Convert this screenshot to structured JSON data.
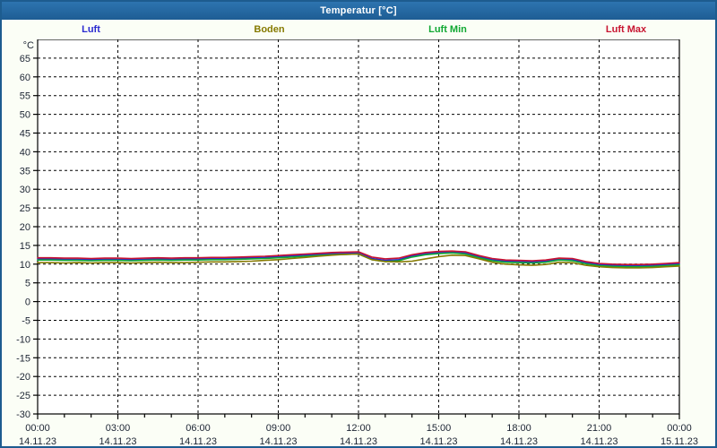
{
  "window": {
    "title": "Temperatur [°C]"
  },
  "legend": {
    "items": [
      {
        "label": "Luft",
        "color": "#2A2AD0"
      },
      {
        "label": "Boden",
        "color": "#867A00"
      },
      {
        "label": "Luft Min",
        "color": "#10A832"
      },
      {
        "label": "Luft Max",
        "color": "#C81430"
      }
    ]
  },
  "colors": {
    "titlebar": "#2569A3",
    "window_border": "#1D5C8F",
    "background": "#FBFEF6",
    "plot_background": "#FFFFFF",
    "grid": "#000000",
    "axis": "#000000",
    "tick_text": "#1C2433"
  },
  "chart_data": {
    "type": "line",
    "title": "Temperatur [°C]",
    "ylabel": "°C",
    "ylim": [
      -30,
      70
    ],
    "ytick_start": -30,
    "ytick_end": 65,
    "ytick_step": 5,
    "grid": "dashed",
    "legend_position": "top",
    "x_unit": "hours",
    "x_range_hours": [
      0,
      24
    ],
    "x_sample_step_hours": 0.5,
    "x_minor_tick_hours": 1,
    "x_major_ticks": [
      {
        "hour": 0,
        "time": "00:00",
        "date": "14.11.23"
      },
      {
        "hour": 3,
        "time": "03:00",
        "date": "14.11.23"
      },
      {
        "hour": 6,
        "time": "06:00",
        "date": "14.11.23"
      },
      {
        "hour": 9,
        "time": "09:00",
        "date": "14.11.23"
      },
      {
        "hour": 12,
        "time": "12:00",
        "date": "14.11.23"
      },
      {
        "hour": 15,
        "time": "15:00",
        "date": "14.11.23"
      },
      {
        "hour": 18,
        "time": "18:00",
        "date": "14.11.23"
      },
      {
        "hour": 21,
        "time": "21:00",
        "date": "14.11.23"
      },
      {
        "hour": 24,
        "time": "00:00",
        "date": "15.11.23"
      }
    ],
    "series": [
      {
        "name": "Luft",
        "color": "#2A2AD0",
        "values": [
          11.4,
          11.4,
          11.3,
          11.3,
          11.2,
          11.3,
          11.3,
          11.2,
          11.3,
          11.4,
          11.3,
          11.4,
          11.4,
          11.5,
          11.5,
          11.6,
          11.7,
          11.8,
          12.0,
          12.2,
          12.4,
          12.6,
          12.8,
          12.9,
          13.0,
          11.5,
          11.0,
          11.2,
          12.2,
          12.8,
          13.1,
          13.3,
          13.0,
          12.0,
          11.2,
          10.8,
          10.7,
          10.6,
          10.8,
          11.4,
          11.2,
          10.4,
          9.9,
          9.7,
          9.6,
          9.6,
          9.7,
          9.9,
          10.1
        ]
      },
      {
        "name": "Luft Min",
        "color": "#10A832",
        "values": [
          11.1,
          11.1,
          11.0,
          11.0,
          10.9,
          11.0,
          11.0,
          10.9,
          11.0,
          11.1,
          11.0,
          11.1,
          11.1,
          11.2,
          11.2,
          11.3,
          11.4,
          11.5,
          11.7,
          11.9,
          12.1,
          12.3,
          12.5,
          12.6,
          12.7,
          11.2,
          10.7,
          10.9,
          11.9,
          12.5,
          12.8,
          13.0,
          12.7,
          11.7,
          10.9,
          10.5,
          10.4,
          10.3,
          10.5,
          11.1,
          10.9,
          10.1,
          9.6,
          9.4,
          9.3,
          9.3,
          9.4,
          9.6,
          9.8
        ]
      },
      {
        "name": "Boden",
        "color": "#867A00",
        "values": [
          10.4,
          10.4,
          10.3,
          10.4,
          10.3,
          10.4,
          10.4,
          10.3,
          10.4,
          10.5,
          10.4,
          10.4,
          10.5,
          10.6,
          10.6,
          10.7,
          10.8,
          11.0,
          11.2,
          11.5,
          11.8,
          12.1,
          12.4,
          12.6,
          12.7,
          11.2,
          10.7,
          10.6,
          10.8,
          11.4,
          12.0,
          12.4,
          12.3,
          11.4,
          10.5,
          10.0,
          9.8,
          9.7,
          9.9,
          10.5,
          10.4,
          9.7,
          9.3,
          9.1,
          9.0,
          9.0,
          9.1,
          9.3,
          9.5
        ]
      },
      {
        "name": "Luft Max",
        "color": "#C81430",
        "values": [
          11.7,
          11.7,
          11.6,
          11.6,
          11.5,
          11.6,
          11.6,
          11.5,
          11.6,
          11.7,
          11.6,
          11.7,
          11.7,
          11.8,
          11.8,
          11.9,
          12.0,
          12.1,
          12.3,
          12.5,
          12.7,
          12.9,
          13.1,
          13.2,
          13.3,
          11.9,
          11.4,
          11.6,
          12.5,
          13.1,
          13.4,
          13.5,
          13.3,
          12.3,
          11.5,
          11.1,
          11.0,
          10.9,
          11.1,
          11.6,
          11.5,
          10.7,
          10.2,
          10.0,
          9.9,
          9.9,
          10.0,
          10.2,
          10.4
        ]
      }
    ]
  }
}
